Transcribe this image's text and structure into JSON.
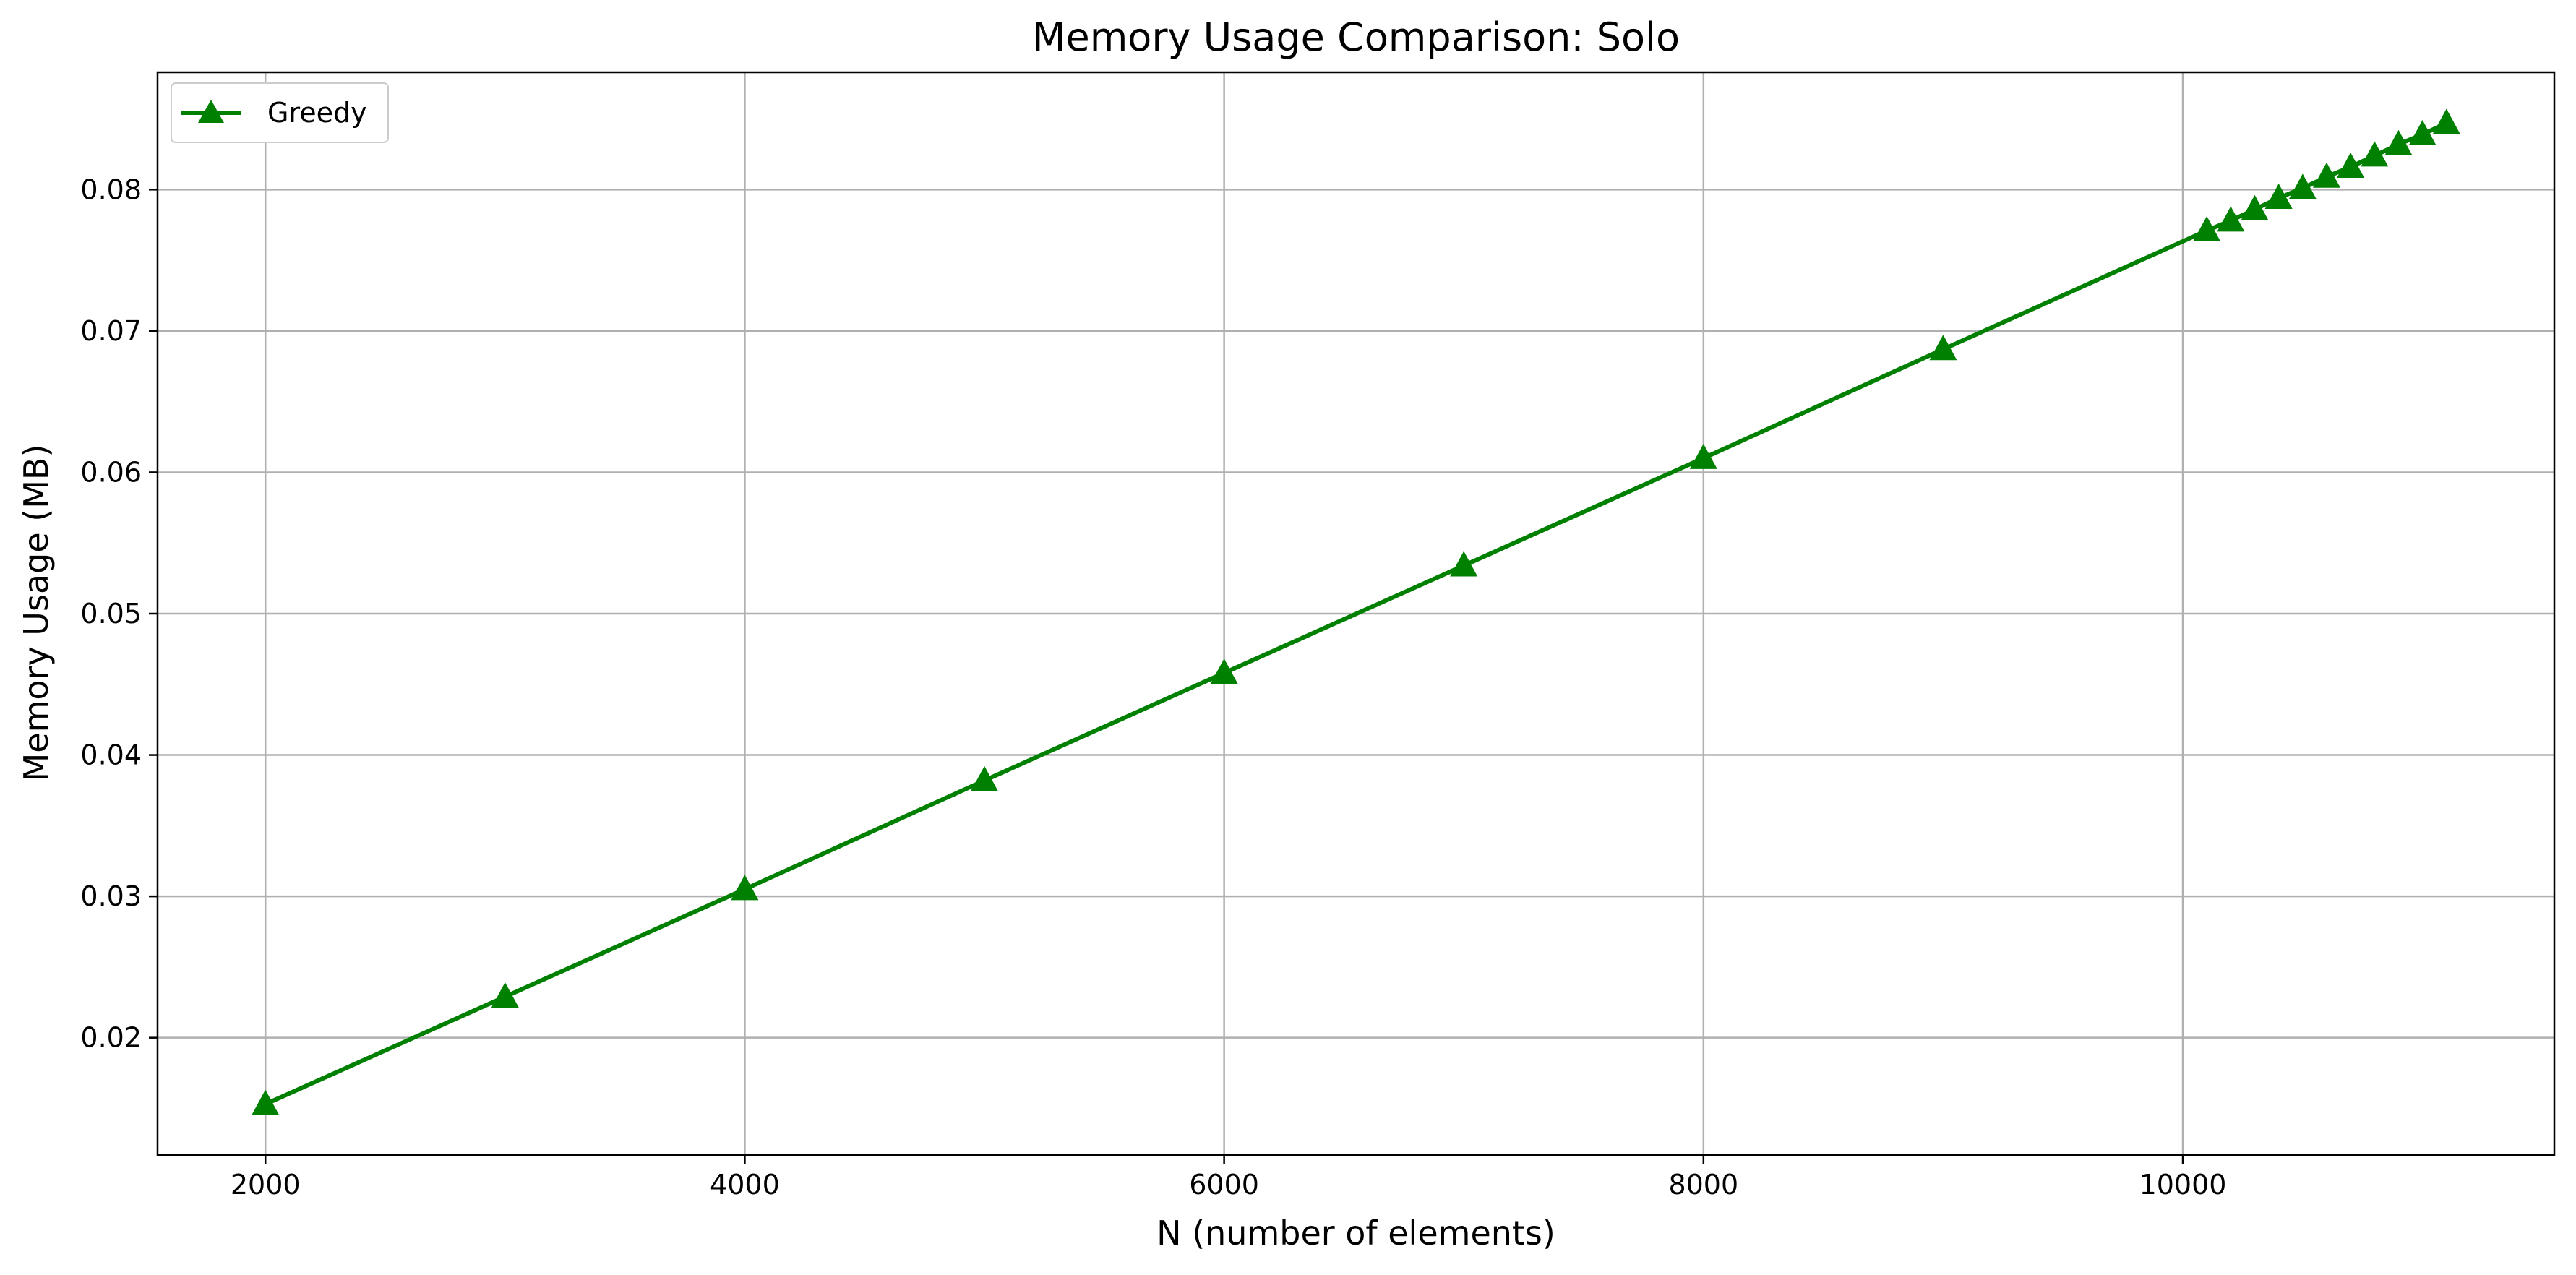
{
  "chart_data": {
    "type": "line",
    "title": "Memory Usage Comparison: Solo",
    "xlabel": "N (number of elements)",
    "ylabel": "Memory Usage (MB)",
    "xlim": [
      1550,
      11550
    ],
    "ylim": [
      0.0117,
      0.0883
    ],
    "xticks": [
      2000,
      4000,
      6000,
      8000,
      10000
    ],
    "xtick_labels": [
      "2000",
      "4000",
      "6000",
      "8000",
      "10000"
    ],
    "yticks": [
      0.02,
      0.03,
      0.04,
      0.05,
      0.06,
      0.07,
      0.08
    ],
    "ytick_labels": [
      "0.02",
      "0.03",
      "0.04",
      "0.05",
      "0.06",
      "0.07",
      "0.08"
    ],
    "grid": true,
    "legend": {
      "placement": "top-left"
    },
    "series": [
      {
        "name": "Greedy",
        "color": "#008000",
        "marker": "triangle-up",
        "x": [
          2000,
          3000,
          4000,
          5000,
          6000,
          7000,
          8000,
          9000,
          10100,
          10200,
          10300,
          10400,
          10500,
          10600,
          10700,
          10800,
          10900,
          11000,
          11100
        ],
        "y": [
          0.0153,
          0.0229,
          0.0305,
          0.0382,
          0.0458,
          0.0534,
          0.061,
          0.0687,
          0.0771,
          0.0778,
          0.0786,
          0.0794,
          0.0801,
          0.0809,
          0.0816,
          0.0824,
          0.0832,
          0.0839,
          0.0847
        ]
      }
    ]
  }
}
